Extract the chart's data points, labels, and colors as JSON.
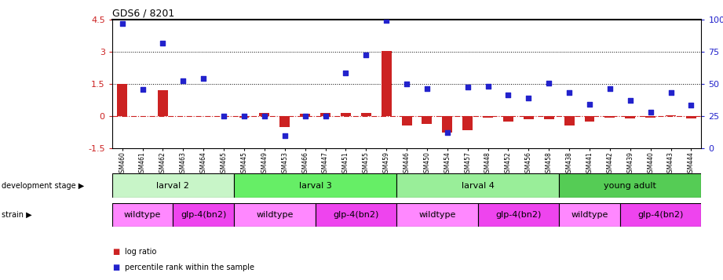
{
  "title": "GDS6 / 8201",
  "samples": [
    "GSM460",
    "GSM461",
    "GSM462",
    "GSM463",
    "GSM464",
    "GSM465",
    "GSM445",
    "GSM449",
    "GSM453",
    "GSM466",
    "GSM447",
    "GSM451",
    "GSM455",
    "GSM459",
    "GSM446",
    "GSM450",
    "GSM454",
    "GSM457",
    "GSM448",
    "GSM452",
    "GSM456",
    "GSM458",
    "GSM438",
    "GSM441",
    "GSM442",
    "GSM439",
    "GSM440",
    "GSM443",
    "GSM444"
  ],
  "log_ratio": [
    1.5,
    0.0,
    1.2,
    0.0,
    0.0,
    0.0,
    -0.05,
    0.15,
    -0.5,
    0.1,
    0.15,
    0.15,
    0.15,
    3.05,
    -0.45,
    -0.35,
    -0.75,
    -0.65,
    -0.05,
    -0.25,
    -0.15,
    -0.15,
    -0.45,
    -0.25,
    -0.05,
    -0.1,
    -0.05,
    0.05,
    -0.1
  ],
  "percentile": [
    4.3,
    1.25,
    3.4,
    1.65,
    1.75,
    0.0,
    0.0,
    0.0,
    -0.9,
    0.0,
    0.0,
    2.0,
    2.85,
    4.45,
    1.5,
    1.3,
    -0.75,
    1.35,
    1.4,
    1.0,
    0.85,
    1.55,
    1.1,
    0.55,
    1.3,
    0.75,
    0.2,
    1.1,
    0.5
  ],
  "dev_stage_groups": [
    {
      "label": "larval 2",
      "start": 0,
      "end": 6,
      "color": "#c8f5c8"
    },
    {
      "label": "larval 3",
      "start": 6,
      "end": 14,
      "color": "#66ee66"
    },
    {
      "label": "larval 4",
      "start": 14,
      "end": 22,
      "color": "#99ee99"
    },
    {
      "label": "young adult",
      "start": 22,
      "end": 29,
      "color": "#55cc55"
    }
  ],
  "strain_groups": [
    {
      "label": "wildtype",
      "start": 0,
      "end": 3,
      "color": "#ff88ff"
    },
    {
      "label": "glp-4(bn2)",
      "start": 3,
      "end": 6,
      "color": "#ee44ee"
    },
    {
      "label": "wildtype",
      "start": 6,
      "end": 10,
      "color": "#ff88ff"
    },
    {
      "label": "glp-4(bn2)",
      "start": 10,
      "end": 14,
      "color": "#ee44ee"
    },
    {
      "label": "wildtype",
      "start": 14,
      "end": 18,
      "color": "#ff88ff"
    },
    {
      "label": "glp-4(bn2)",
      "start": 18,
      "end": 22,
      "color": "#ee44ee"
    },
    {
      "label": "wildtype",
      "start": 22,
      "end": 25,
      "color": "#ff88ff"
    },
    {
      "label": "glp-4(bn2)",
      "start": 25,
      "end": 29,
      "color": "#ee44ee"
    }
  ],
  "ylim_left": [
    -1.5,
    4.5
  ],
  "yticks_left": [
    -1.5,
    0.0,
    1.5,
    3.0,
    4.5
  ],
  "yticks_right": [
    0,
    25,
    50,
    75,
    100
  ],
  "bar_color": "#cc2222",
  "dot_color": "#2222cc",
  "left_label_color": "#cc2222",
  "right_label_color": "#2222cc"
}
